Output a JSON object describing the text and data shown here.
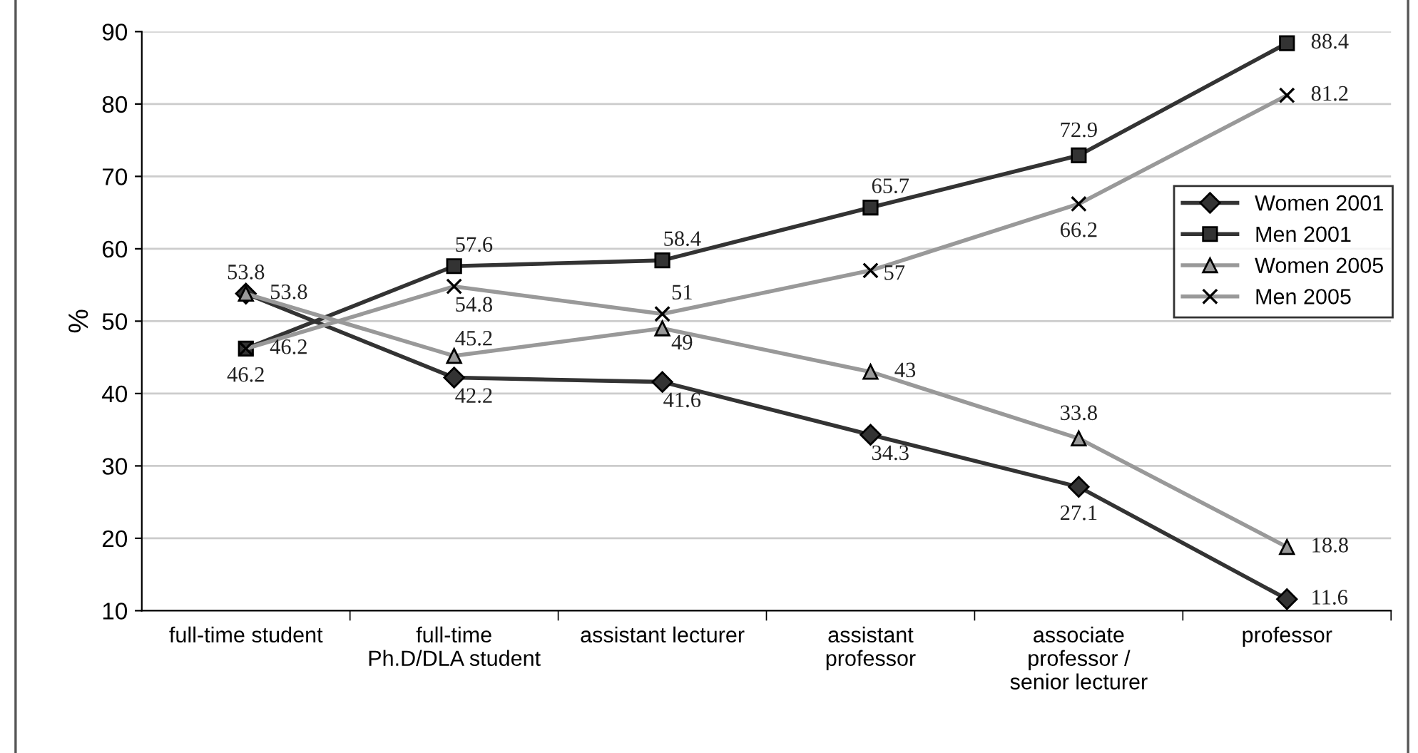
{
  "chart_data": {
    "type": "line",
    "ylabel": "%",
    "categories": [
      "full-time student",
      "full-time\nPh.D/DLA student",
      "assistant lecturer",
      "assistant\nprofessor",
      "associate\nprofessor /\nsenior lecturer",
      "professor"
    ],
    "series": [
      {
        "name": "Women 2001",
        "color": "#333333",
        "marker": "diamond",
        "values": [
          53.8,
          42.2,
          41.6,
          34.3,
          27.1,
          11.6
        ]
      },
      {
        "name": "Men 2001",
        "color": "#333333",
        "marker": "square",
        "values": [
          46.2,
          57.6,
          58.4,
          65.7,
          72.9,
          88.4
        ]
      },
      {
        "name": "Women 2005",
        "color": "#999999",
        "marker": "triangle",
        "values": [
          53.8,
          45.2,
          49,
          43,
          33.8,
          18.8
        ]
      },
      {
        "name": "Men 2005",
        "color": "#999999",
        "marker": "cross",
        "values": [
          46.2,
          54.8,
          51,
          57,
          66.2,
          81.2
        ]
      }
    ],
    "ylim": [
      10,
      90
    ],
    "yticks": [
      10,
      20,
      30,
      40,
      50,
      60,
      70,
      80,
      90
    ],
    "grid": "y",
    "legend": "right",
    "data_labels": true,
    "line_style": "solid"
  }
}
